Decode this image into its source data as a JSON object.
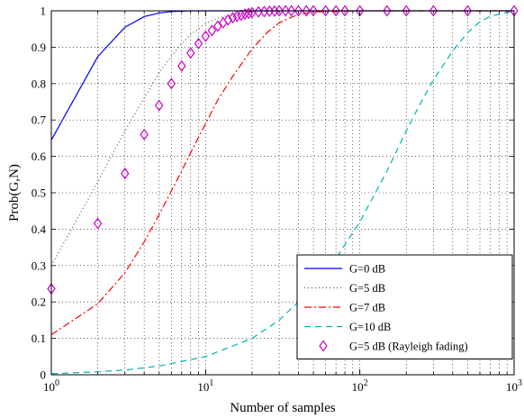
{
  "chart_data": {
    "type": "line",
    "xlabel": "Number of samples",
    "ylabel": "Prob(G,N)",
    "xscale": "log",
    "xlim": [
      1,
      1000
    ],
    "ylim": [
      0,
      1
    ],
    "grid": true,
    "legend_position": "bottom-right",
    "x_ticks": [
      {
        "value": 1,
        "base": "10",
        "exp": "0"
      },
      {
        "value": 10,
        "base": "10",
        "exp": "1"
      },
      {
        "value": 100,
        "base": "10",
        "exp": "2"
      },
      {
        "value": 1000,
        "base": "10",
        "exp": "3"
      }
    ],
    "y_ticks": [
      {
        "value": 0,
        "label": "0"
      },
      {
        "value": 0.1,
        "label": "0.1"
      },
      {
        "value": 0.2,
        "label": "0.2"
      },
      {
        "value": 0.3,
        "label": "0.3"
      },
      {
        "value": 0.4,
        "label": "0.4"
      },
      {
        "value": 0.5,
        "label": "0.5"
      },
      {
        "value": 0.6,
        "label": "0.6"
      },
      {
        "value": 0.7,
        "label": "0.7"
      },
      {
        "value": 0.8,
        "label": "0.8"
      },
      {
        "value": 0.9,
        "label": "0.9"
      },
      {
        "value": 1,
        "label": "1"
      }
    ],
    "series": [
      {
        "name": "G=0 dB",
        "color": "#0000ff",
        "style": "solid",
        "x": [
          1,
          2,
          3,
          4,
          5,
          6,
          7,
          8,
          10,
          15,
          20,
          30,
          50,
          100,
          200,
          500,
          1000
        ],
        "y": [
          0.645,
          0.874,
          0.955,
          0.984,
          0.994,
          0.998,
          0.999,
          1.0,
          1.0,
          1.0,
          1.0,
          1.0,
          1.0,
          1.0,
          1.0,
          1.0,
          1.0
        ]
      },
      {
        "name": "G=5 dB",
        "color": "#555555",
        "style": "dotted",
        "x": [
          1,
          2,
          3,
          4,
          5,
          6,
          7,
          8,
          10,
          12,
          15,
          20,
          30,
          50,
          100,
          1000
        ],
        "y": [
          0.3,
          0.53,
          0.67,
          0.76,
          0.83,
          0.875,
          0.91,
          0.935,
          0.965,
          0.98,
          0.99,
          0.997,
          1.0,
          1.0,
          1.0,
          1.0
        ]
      },
      {
        "name": "G=7 dB",
        "color": "#ff0000",
        "style": "dashdot",
        "x": [
          1,
          2,
          3,
          4,
          5,
          6,
          7,
          8,
          10,
          12,
          15,
          20,
          25,
          30,
          35,
          40,
          50,
          100,
          1000
        ],
        "y": [
          0.11,
          0.195,
          0.28,
          0.365,
          0.44,
          0.505,
          0.56,
          0.61,
          0.69,
          0.755,
          0.82,
          0.895,
          0.94,
          0.967,
          0.98,
          0.99,
          0.997,
          1.0,
          1.0
        ]
      },
      {
        "name": "G=10 dB",
        "color": "#00b3b3",
        "style": "dashed",
        "x": [
          1,
          2,
          3,
          5,
          10,
          20,
          30,
          50,
          70,
          100,
          150,
          200,
          250,
          300,
          400,
          500,
          600,
          700,
          1000
        ],
        "y": [
          0.003,
          0.008,
          0.013,
          0.024,
          0.05,
          0.1,
          0.15,
          0.24,
          0.32,
          0.42,
          0.56,
          0.67,
          0.75,
          0.81,
          0.89,
          0.94,
          0.97,
          0.985,
          1.0
        ]
      },
      {
        "name": "G=5 dB (Rayleigh fading)",
        "color": "#cc00cc",
        "style": "markers-diamond",
        "x": [
          1,
          2,
          3,
          4,
          5,
          6,
          7,
          8,
          9,
          10,
          11,
          12,
          13,
          14,
          15,
          16,
          17,
          18,
          19,
          20,
          22,
          24,
          26,
          28,
          30,
          33,
          36,
          40,
          45,
          50,
          60,
          70,
          80,
          100,
          150,
          200,
          300,
          500,
          1000
        ],
        "y": [
          0.236,
          0.416,
          0.553,
          0.66,
          0.74,
          0.8,
          0.848,
          0.884,
          0.91,
          0.93,
          0.946,
          0.958,
          0.967,
          0.975,
          0.981,
          0.985,
          0.988,
          0.991,
          0.993,
          0.995,
          0.997,
          0.998,
          0.999,
          0.999,
          1.0,
          1.0,
          1.0,
          1.0,
          1.0,
          1.0,
          1.0,
          1.0,
          1.0,
          1.0,
          1.0,
          1.0,
          1.0,
          1.0,
          1.0
        ]
      }
    ]
  }
}
